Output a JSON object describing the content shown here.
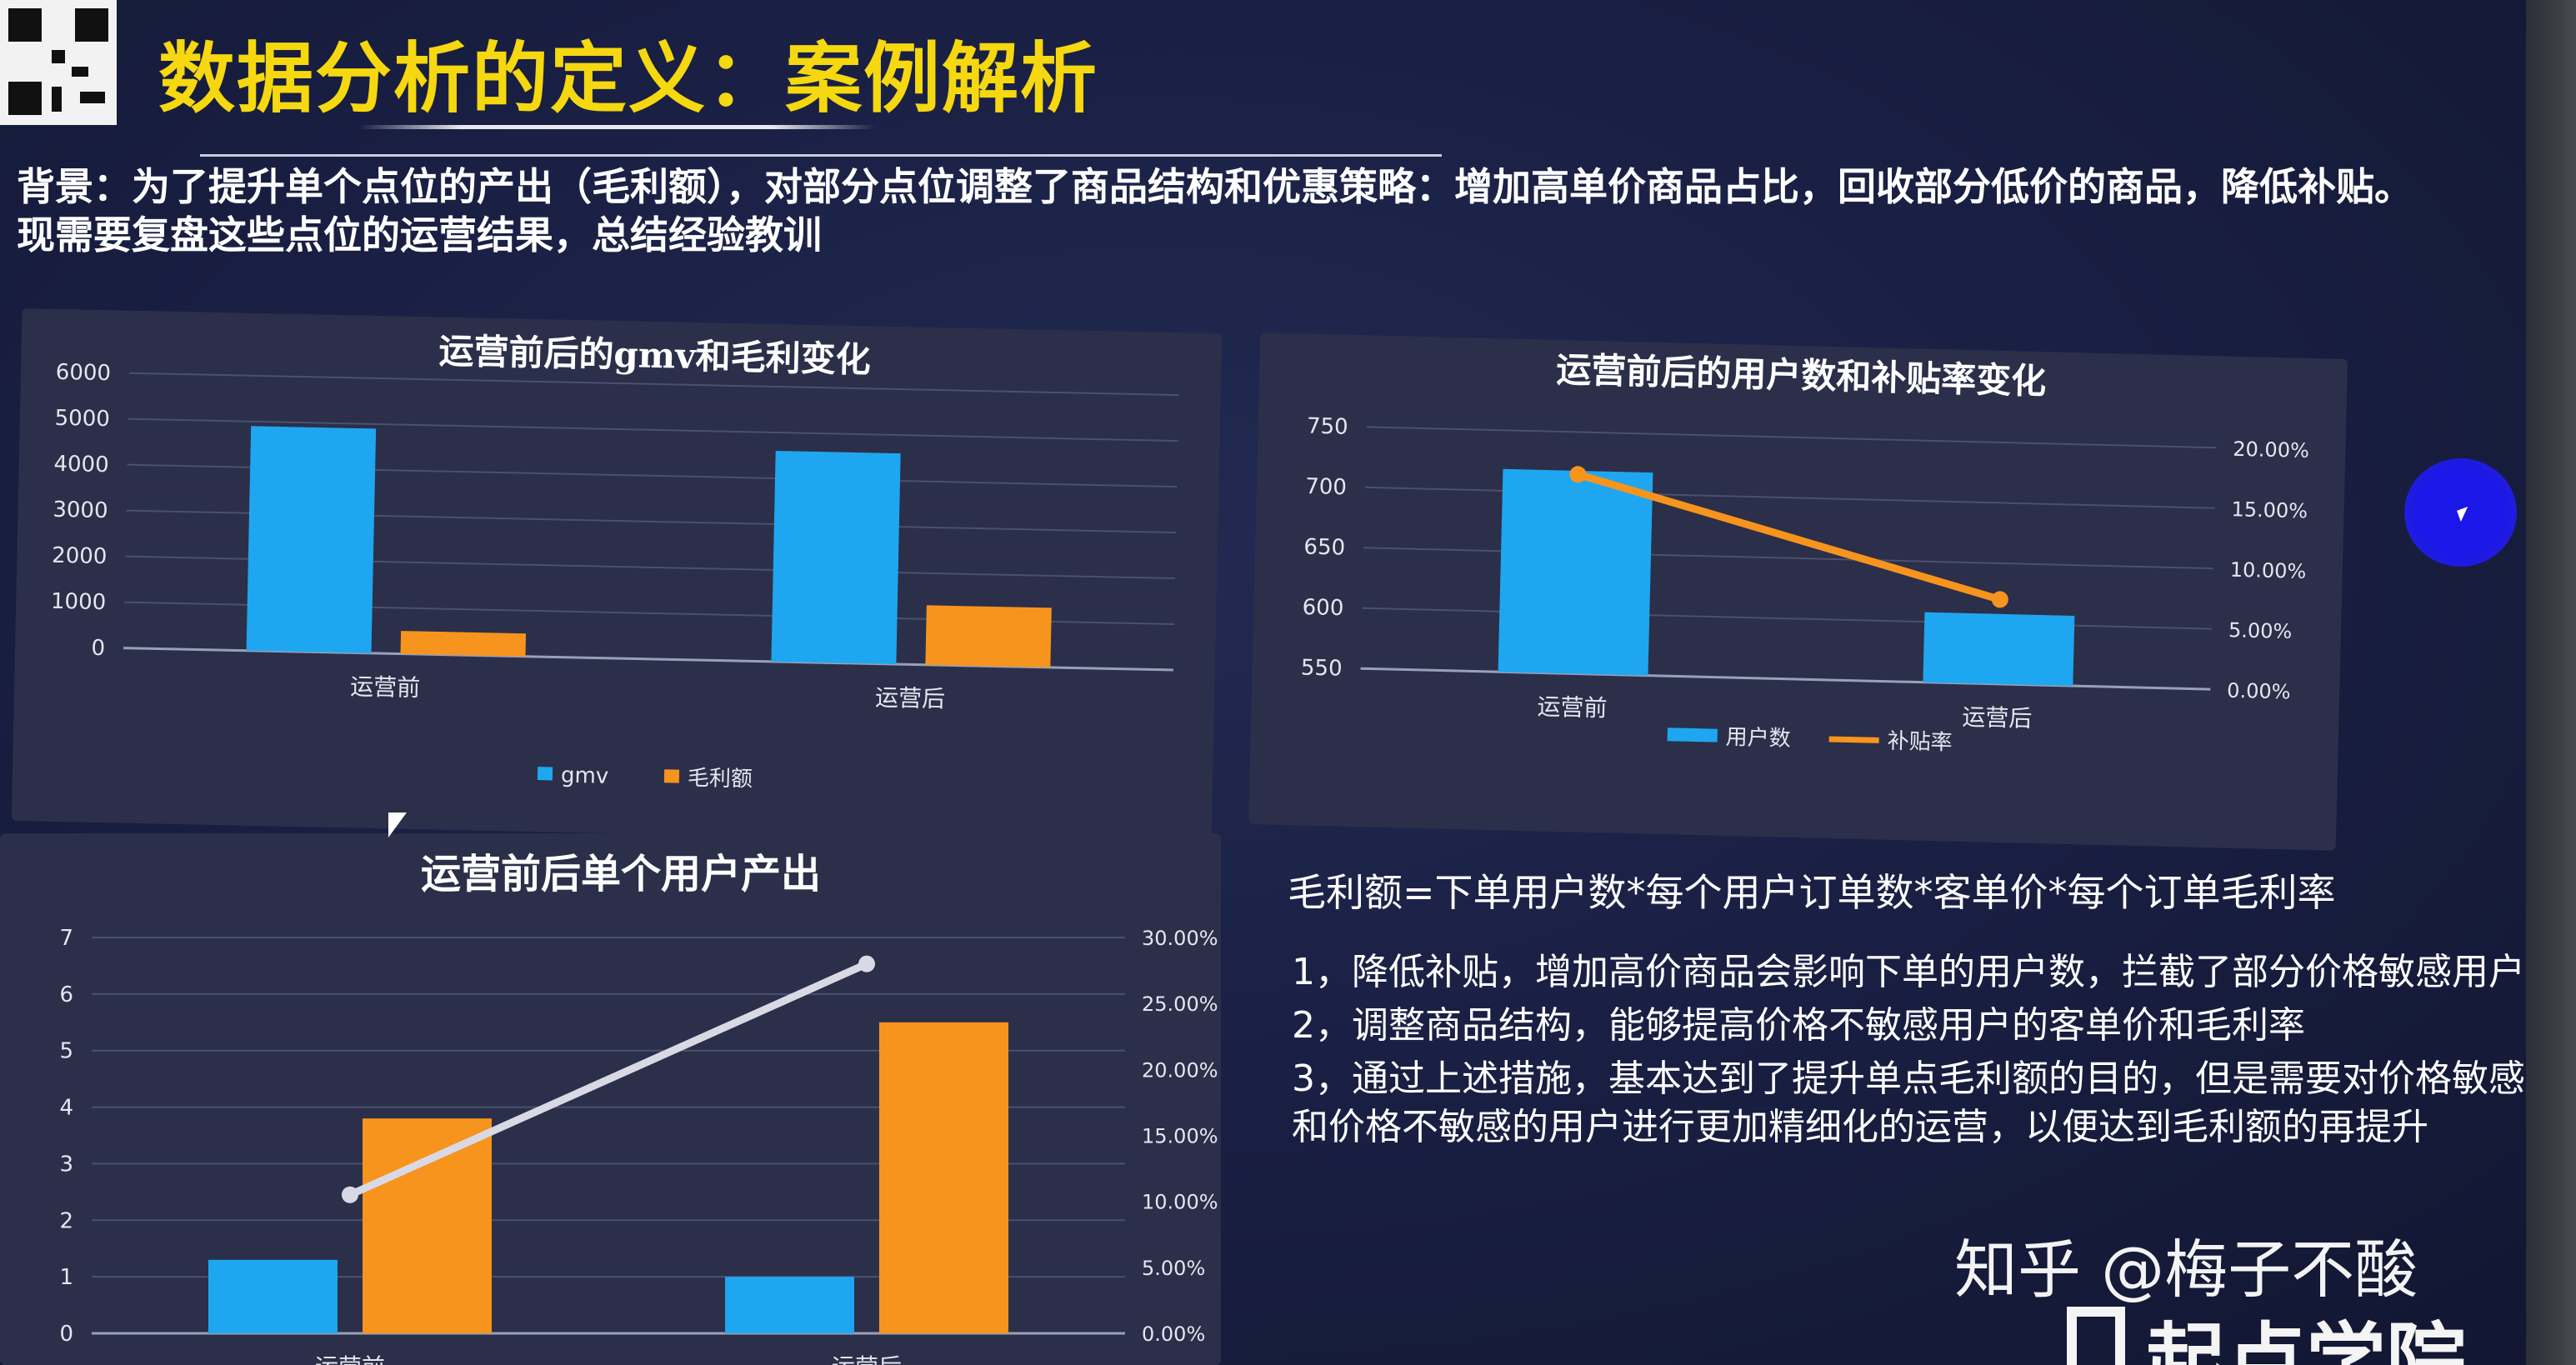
{
  "slide": {
    "title": "数据分析的定义：案例解析",
    "background_text": "背景：为了提升单个点位的产出（毛利额），对部分点位调整了商品结构和优惠策略：增加高单价商品占比，回收部分低价的商品，降低补贴。现需要复盘这些点位的运营结果，总结经验教训",
    "formula": "毛利额=下单用户数*每个用户订单数*客单价*每个订单毛利率",
    "points": [
      "1，降低补贴，增加高价商品会影响下单的用户数，拦截了部分价格敏感用户",
      "2，调整商品结构，能够提高价格不敏感用户的客单价和毛利率",
      "3，通过上述措施，基本达到了提升单点毛利额的目的，但是需要对价格敏感和价格不敏感的用户进行更加精细化的运营，以便达到毛利额的再提升"
    ],
    "watermark": "知乎 @梅子不酸",
    "brand": "起点学院"
  },
  "colors": {
    "title": "#f5d80f",
    "gmv": "#1fa6f0",
    "margin": "#f7941d",
    "users": "#1fa6f0",
    "subsidy": "#f7941d",
    "output_line": "#d9d9e6",
    "panel": "#2b2f49",
    "cursor": "#1b17e8"
  },
  "chart_data": [
    {
      "type": "bar",
      "title": "运营前后的gmv和毛利变化",
      "categories": [
        "运营前",
        "运营后"
      ],
      "series": [
        {
          "name": "gmv",
          "values": [
            4900,
            4600
          ]
        },
        {
          "name": "毛利额",
          "values": [
            500,
            1300
          ]
        }
      ],
      "ylim": [
        0,
        6000
      ],
      "yticks": [
        "0",
        "1000",
        "2000",
        "3000",
        "4000",
        "5000",
        "6000"
      ],
      "grid": true,
      "legend": "bottom"
    },
    {
      "type": "bar",
      "title": "运营前后的用户数和补贴率变化",
      "categories": [
        "运营前",
        "运营后"
      ],
      "series": [
        {
          "name": "用户数",
          "type": "bar",
          "axis": "left",
          "values": [
            718,
            608
          ]
        },
        {
          "name": "补贴率",
          "type": "line",
          "axis": "right",
          "values": [
            0.165,
            0.07
          ]
        }
      ],
      "ylim": [
        550,
        750
      ],
      "yticks": [
        "550",
        "600",
        "650",
        "700",
        "750"
      ],
      "y2lim": [
        0,
        0.2
      ],
      "y2ticks": [
        "0.00%",
        "5.00%",
        "10.00%",
        "15.00%",
        "20.00%"
      ],
      "grid": true,
      "legend": "bottom"
    },
    {
      "type": "bar",
      "title": "运营前后单个用户产出",
      "categories": [
        "运营前",
        "运营后"
      ],
      "series": [
        {
          "type": "bar",
          "axis": "left",
          "values": [
            1.3,
            1.0
          ]
        },
        {
          "type": "bar",
          "axis": "left",
          "values": [
            3.8,
            5.5
          ]
        },
        {
          "type": "line",
          "axis": "right",
          "values": [
            0.105,
            0.28
          ]
        }
      ],
      "ylim": [
        0,
        7
      ],
      "yticks": [
        "0",
        "1",
        "2",
        "3",
        "4",
        "5",
        "6",
        "7"
      ],
      "y2lim": [
        0,
        0.3
      ],
      "y2ticks": [
        "0.00%",
        "5.00%",
        "10.00%",
        "15.00%",
        "20.00%",
        "25.00%",
        "30.00%"
      ],
      "grid": true,
      "legend": "none"
    }
  ]
}
